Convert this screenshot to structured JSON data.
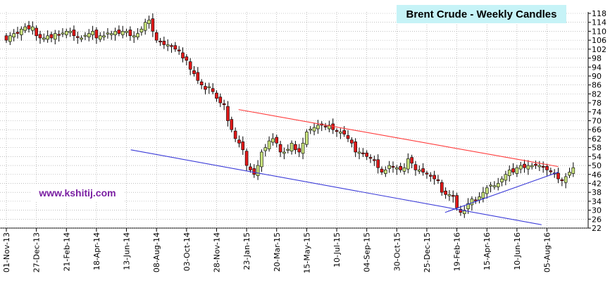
{
  "chart_data": {
    "type": "candlestick",
    "title": "Brent Crude - Weekly Candles",
    "watermark": "www.kshitij.com",
    "ylim": [
      22,
      118
    ],
    "y_ticks": [
      "118",
      "114",
      "110",
      "106",
      "102",
      "98",
      "94",
      "90",
      "86",
      "82",
      "78",
      "74",
      "70",
      "66",
      "62",
      "58",
      "54",
      "50",
      "46",
      "42",
      "38",
      "34",
      "30",
      "26",
      "22"
    ],
    "x_ticks": [
      "01-Nov-13",
      "27-Dec-13",
      "21-Feb-14",
      "18-Apr-14",
      "13-Jun-14",
      "08-Aug-14",
      "03-Oct-14",
      "28-Nov-14",
      "23-Jan-15",
      "20-Mar-15",
      "15-May-15",
      "10-Jul-15",
      "04-Sep-15",
      "30-Oct-15",
      "25-Dec-15",
      "19-Feb-16",
      "15-Apr-16",
      "10-Jun-16",
      "05-Aug-16"
    ],
    "grid": true,
    "colors": {
      "bull": "#c6e07a",
      "bear": "#e01818",
      "upper_trendline": "#ff3b3b",
      "lower_trendline": "#3a3ad8",
      "grid": "#9a9a9a"
    },
    "closes": [
      106,
      108,
      109,
      109,
      111,
      112,
      111,
      112,
      108,
      107,
      107,
      108,
      107,
      109,
      108,
      109,
      110,
      110,
      108,
      107,
      107,
      108,
      109,
      110,
      107,
      108,
      108,
      109,
      109,
      110,
      109,
      110,
      110,
      108,
      108,
      109,
      111,
      114,
      115,
      110,
      106,
      105,
      104,
      104,
      103,
      102,
      101,
      98,
      97,
      93,
      91,
      88,
      86,
      84,
      85,
      83,
      80,
      78,
      77,
      70,
      66,
      62,
      60,
      57,
      50,
      48,
      46,
      50,
      56,
      58,
      61,
      62,
      60,
      56,
      56,
      57,
      60,
      57,
      56,
      60,
      65,
      66,
      67,
      68,
      68,
      67,
      68,
      66,
      65,
      65,
      64,
      62,
      60,
      56,
      56,
      55,
      54,
      53,
      52,
      49,
      47,
      48,
      50,
      49,
      49,
      48,
      49,
      53,
      51,
      48,
      48,
      47,
      46,
      45,
      44,
      43,
      38,
      37,
      37,
      36,
      31,
      29,
      30,
      33,
      35,
      34,
      36,
      38,
      40,
      41,
      41,
      42,
      44,
      46,
      48,
      47,
      49,
      50,
      49,
      50,
      50,
      50,
      50,
      49,
      48,
      47,
      46,
      44,
      43,
      45,
      47,
      49
    ],
    "series": [
      {
        "name": "",
        "kind": "trendline",
        "x": [
          "08-Jan-15",
          "26-Aug-16"
        ],
        "values": [
          75,
          49.5
        ]
      },
      {
        "name": "",
        "kind": "trendline",
        "x": [
          "21-Jun-14",
          "26-Jul-16"
        ],
        "values": [
          57,
          23.5
        ]
      },
      {
        "name": "",
        "kind": "trendline",
        "x": [
          "28-Jan-16",
          "26-Aug-16"
        ],
        "values": [
          29,
          47
        ]
      }
    ]
  }
}
